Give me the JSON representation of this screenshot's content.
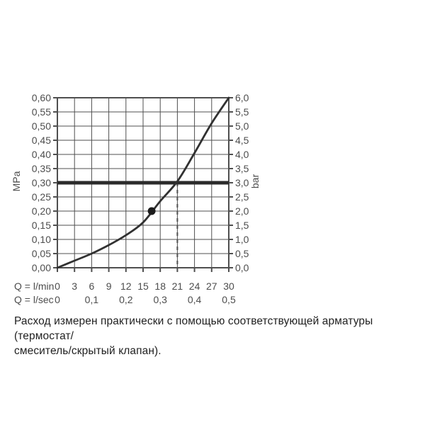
{
  "chart_data": {
    "type": "line",
    "title": "",
    "grid": true,
    "x_axis": {
      "row1_label": "Q = l/min",
      "row2_label": "Q = l/sec",
      "min": 0,
      "max": 30,
      "step": 3,
      "row1_ticks": [
        "0",
        "3",
        "6",
        "9",
        "12",
        "15",
        "18",
        "21",
        "24",
        "27",
        "30"
      ],
      "row2_ticks": [
        {
          "text": "0",
          "q": 0
        },
        {
          "text": "0,1",
          "q": 6
        },
        {
          "text": "0,2",
          "q": 12
        },
        {
          "text": "0,3",
          "q": 18
        },
        {
          "text": "0,4",
          "q": 24
        },
        {
          "text": "0,5",
          "q": 30
        }
      ]
    },
    "y_left_axis": {
      "label": "MPa",
      "min": 0,
      "max": 0.6,
      "step": 0.05,
      "ticks": [
        "0,60",
        "0,55",
        "0,50",
        "0,45",
        "0,40",
        "0,35",
        "0,30",
        "0,25",
        "0,20",
        "0,15",
        "0,10",
        "0,05",
        "0,00"
      ]
    },
    "y_right_axis": {
      "label": "bar",
      "min": 0,
      "max": 6.0,
      "step": 0.5,
      "ticks": [
        "6,0",
        "5,5",
        "5,0",
        "4,5",
        "4,0",
        "3,5",
        "3,0",
        "2,5",
        "2,0",
        "1,5",
        "1,0",
        "0,5",
        "0,0"
      ]
    },
    "series": [
      {
        "name": "flow-vs-pressure-curve",
        "x_lmin": [
          0,
          3,
          6,
          9,
          12,
          15,
          18,
          21,
          24,
          27,
          30
        ],
        "y_bar": [
          0,
          0.25,
          0.5,
          0.8,
          1.15,
          1.6,
          2.35,
          3.05,
          4.05,
          5.1,
          6.0
        ]
      }
    ],
    "marker_point": {
      "x_lmin": 16.5,
      "y_bar": 2.0
    },
    "reference_line_bar": 3.0,
    "dashed_guide_x_lmin": 21,
    "colors": {
      "grid": "#4f4f4f",
      "frame": "#3f3f3f",
      "curve": "#313131",
      "reference_line": "#2b2b2b",
      "dashed_guide": "#4f4f4f",
      "marker": "#1c1c1c",
      "labels": "#4d4d4d",
      "caption_text": "#1f1f1f",
      "background": "#ffffff"
    }
  },
  "caption": {
    "lines": [
      "Расход измерен практически с помощью соответствующей арматуры (термостат/",
      "смеситель/скрытый клапан)."
    ]
  }
}
